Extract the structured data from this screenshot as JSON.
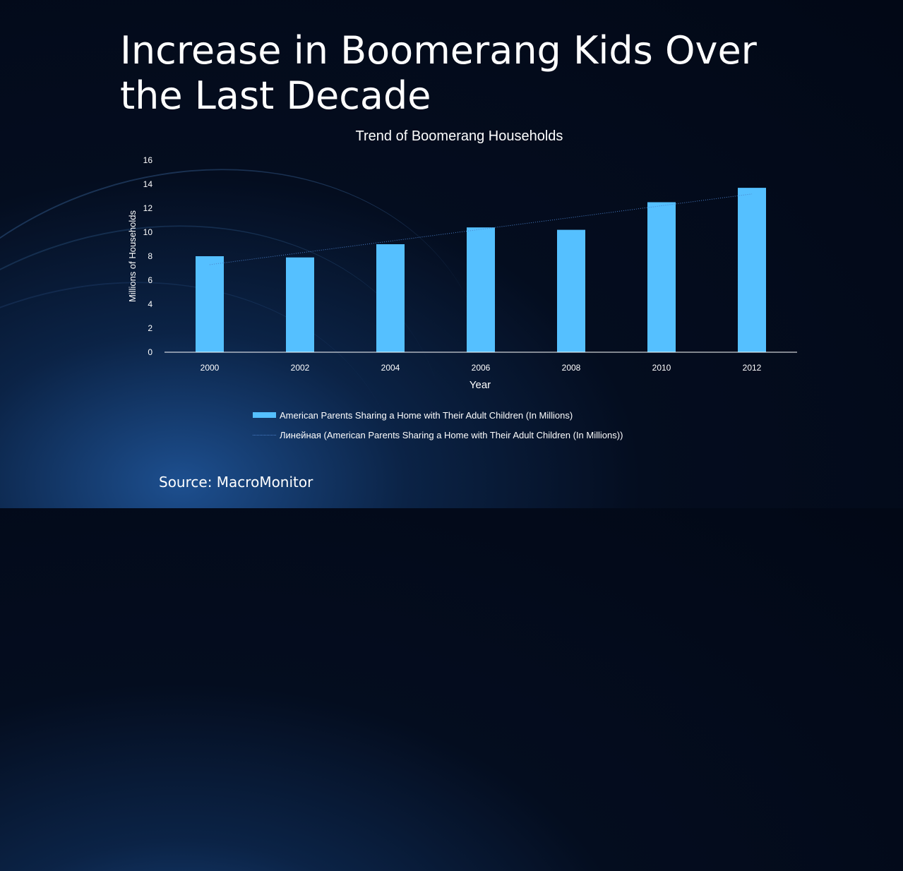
{
  "slide": {
    "title": "Increase in Boomerang Kids Over the Last Decade",
    "source": "Source: MacroMonitor"
  },
  "colors": {
    "bar": "#55c0ff",
    "trendline": "#4a7fc8",
    "axis": "#ffffff"
  },
  "chart_data": {
    "type": "bar",
    "title": "Trend of Boomerang Households",
    "xlabel": "Year",
    "ylabel": "Millions of Households",
    "categories": [
      "2000",
      "2002",
      "2004",
      "2006",
      "2008",
      "2010",
      "2012"
    ],
    "series": [
      {
        "name": "American Parents Sharing a Home with Their Adult Children (In Millions)",
        "values": [
          8.0,
          7.9,
          9.0,
          10.4,
          10.2,
          12.5,
          13.7
        ]
      }
    ],
    "trendline": {
      "name": "Линейная (American Parents Sharing a Home with Their Adult Children (In Millions))",
      "type": "linear"
    },
    "ylim": [
      0,
      16
    ],
    "yticks": [
      "0",
      "2",
      "4",
      "6",
      "8",
      "10",
      "12",
      "14",
      "16"
    ],
    "grid": false,
    "legend": "bottom"
  }
}
